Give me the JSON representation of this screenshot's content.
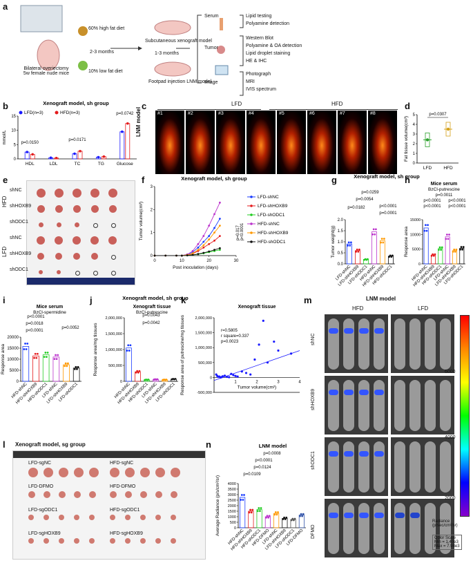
{
  "figure_panels": {
    "a": {
      "label": "a",
      "mice": "Bilateral overiectomy\n5w female nude mice",
      "diet_high": "60% high fat diet",
      "diet_low": "10% low fat diet",
      "time1": "2-3 months",
      "time2": "1-3 months",
      "subq": "Subcutaneous xenograft model",
      "footpad": "Footpad injection LNM model",
      "cat_serum": "Serum",
      "cat_tumor": "Tumor",
      "cat_image": "Image",
      "serum_items": [
        "Lipid testing",
        "Polyamine detection"
      ],
      "tumor_items": [
        "Western Blot",
        "Polyamine & OA detection",
        "Lipid droplet staining",
        "HE & IHC"
      ],
      "image_items": [
        "Photograph",
        "MRI",
        "IVIS spectrum"
      ]
    },
    "b": {
      "label": "b"
    },
    "c": {
      "label": "c",
      "lfd": "LFD",
      "hfd": "HFD",
      "ylabel": "LNM model",
      "mice": [
        "#1",
        "#2",
        "#3",
        "#4",
        "#5",
        "#6",
        "#7",
        "#8"
      ]
    },
    "d": {
      "label": "d"
    },
    "e": {
      "label": "e",
      "groups": [
        "HFD",
        "LFD"
      ],
      "rows": [
        "shNC",
        "shHOXB9",
        "shODC1",
        "shNC",
        "shHOXB9",
        "shODC1"
      ]
    },
    "f": {
      "label": "f"
    },
    "g": {
      "label": "g"
    },
    "h": {
      "label": "h"
    },
    "i": {
      "label": "i"
    },
    "j": {
      "label": "j"
    },
    "k": {
      "label": "k"
    },
    "l": {
      "label": "l",
      "title": "Xenograft model, sg group",
      "labels": [
        "LFD-sgNC",
        "HFD-sgNC",
        "LFD-DFMO",
        "HFD-DFMO",
        "LFD-sgODC1",
        "HFD-sgODC1",
        "LFD-sgHOXB9",
        "HFD-sgHOXB9"
      ]
    },
    "m": {
      "label": "m",
      "title": "LNM model",
      "hfd": "HFD",
      "lfd": "LFD",
      "rows": [
        "shNC",
        "shHOXB9",
        "shODC1",
        "DFMO"
      ],
      "cbar_ticks": [
        "6000",
        "4000",
        "2000"
      ],
      "cbar_label": "Radiance\n(p/sec/cm²/sr)",
      "color_scale": "Color Scale\nMin = 1.40e3\nMax = 7.98e3"
    },
    "n": {
      "label": "n"
    }
  },
  "colors": {
    "lfd": "#1a1aff",
    "hfd": "#e41a1c",
    "lfd_shnc": "#1a3cff",
    "lfd_shhoxb9": "#e41a1c",
    "lfd_shodc1": "#22cc22",
    "hfd_shnc": "#bb33cc",
    "hfd_shhoxb9": "#ff9900",
    "hfd_shodc1": "#111111",
    "d_lfd": "#2ca02c",
    "d_hfd": "#d4a017"
  },
  "chart_data": [
    {
      "panel": "b",
      "type": "bar",
      "title": "Xenograft model, sh group",
      "ylabel": "mmol/L",
      "ylim": [
        0,
        15
      ],
      "yticks": [
        "0",
        "5",
        "10",
        "15"
      ],
      "categories": [
        "HDL",
        "LDL",
        "TC",
        "TG",
        "Glucose"
      ],
      "series": [
        {
          "name": "LFD(n=3)",
          "values": [
            2.4,
            0.4,
            1.8,
            0.6,
            9.5
          ]
        },
        {
          "name": "HFD(n=3)",
          "values": [
            1.6,
            0.3,
            2.7,
            0.8,
            12.4
          ]
        }
      ],
      "annotations": [
        "p=0.0150",
        "p=0.0171",
        "p=0.0742"
      ]
    },
    {
      "panel": "d",
      "type": "bar",
      "ylabel": "Fat tissue volume(cm³)",
      "ylim": [
        0,
        5
      ],
      "yticks": [
        "0",
        "1",
        "2",
        "3",
        "4",
        "5"
      ],
      "categories": [
        "LFD",
        "HFD"
      ],
      "values": [
        2.4,
        3.5
      ],
      "annotations": [
        "p=0.0307"
      ]
    },
    {
      "panel": "f",
      "type": "line",
      "title": "Xenograft model, sh group",
      "xlabel": "Post inoculation (days)",
      "ylabel": "Tumor volume(cm³)",
      "xlim": [
        0,
        30
      ],
      "ylim": [
        0,
        3
      ],
      "xticks": [
        "0",
        "10",
        "20",
        "30"
      ],
      "yticks": [
        "0",
        "1",
        "2",
        "3"
      ],
      "x": [
        0,
        4,
        8,
        10,
        12,
        14,
        16,
        18,
        20,
        22,
        24
      ],
      "series": [
        {
          "name": "LFD-shNC",
          "values": [
            0,
            0,
            0,
            0,
            0.05,
            0.15,
            0.35,
            0.6,
            0.85,
            1.2,
            1.6
          ]
        },
        {
          "name": "LFD-shHOXB9",
          "values": [
            0,
            0,
            0,
            0,
            0.02,
            0.08,
            0.2,
            0.35,
            0.5,
            0.65,
            0.85
          ]
        },
        {
          "name": "LFD-shODC1",
          "values": [
            0,
            0,
            0,
            0,
            0.01,
            0.03,
            0.06,
            0.1,
            0.15,
            0.2,
            0.25
          ]
        },
        {
          "name": "HFD-shNC",
          "values": [
            0,
            0,
            0,
            0,
            0.05,
            0.2,
            0.5,
            0.85,
            1.3,
            1.8,
            2.3
          ]
        },
        {
          "name": "HFD-shHOXB9",
          "values": [
            0,
            0,
            0,
            0,
            0.03,
            0.1,
            0.25,
            0.45,
            0.7,
            1.0,
            1.3
          ]
        },
        {
          "name": "HFD-shODC1",
          "values": [
            0,
            0,
            0,
            0,
            0.01,
            0.03,
            0.07,
            0.12,
            0.18,
            0.25,
            0.32
          ]
        }
      ],
      "annotations": [
        "p=0.017",
        "p<0.0001"
      ]
    },
    {
      "panel": "g",
      "type": "bar",
      "ylabel": "Tumor weight(g)",
      "ylim": [
        0,
        2.0
      ],
      "yticks": [
        "0.0",
        "0.5",
        "1.0",
        "1.5",
        "2.0"
      ],
      "categories": [
        "LFD-shNC",
        "LFD-shHOXB9",
        "LFD-shODC1",
        "HFD-shNC",
        "HFD-shHOXB9",
        "HFD-shODC1"
      ],
      "values": [
        0.9,
        0.6,
        0.2,
        1.45,
        1.05,
        0.35
      ],
      "annotations": [
        "p=0.0259",
        "p=0.0054",
        "p<0.0001",
        "p=0.0182",
        "p=0.0001"
      ]
    },
    {
      "panel": "h",
      "type": "bar",
      "title": "Mice serum",
      "subtitle": "BzCl-putrescine",
      "ylabel": "Response area",
      "ylim": [
        0,
        15000
      ],
      "yticks": [
        "0",
        "5000",
        "10000",
        "15000"
      ],
      "categories": [
        "HFD-shNC",
        "HFD-shHOXB9",
        "HFD-shODC1",
        "LFD-shNC",
        "LFD-shHOXB9",
        "LFD-shODC1"
      ],
      "values": [
        12200,
        3000,
        5200,
        9200,
        4500,
        5300
      ],
      "annotations": [
        "p=0.0011",
        "p<0.0001",
        "p<0.0001",
        "p<0.0001",
        "p<0.0001"
      ]
    },
    {
      "panel": "i",
      "type": "bar",
      "title": "Mice serum",
      "subtitle": "BzCl-spermidine",
      "ylabel": "Response area",
      "ylim": [
        0,
        20000
      ],
      "yticks": [
        "0",
        "5000",
        "10000",
        "15000",
        "20000"
      ],
      "categories": [
        "HFD-shNC",
        "HFD-shHOXB9",
        "HFD-shODC1",
        "LFD-shNC",
        "LFD-shHOXB9",
        "LFD-shODC1"
      ],
      "values": [
        15800,
        11500,
        12000,
        11000,
        7500,
        6000
      ],
      "annotations": [
        "p<0.0001",
        "p=0.0018",
        "p<0.0001",
        "p=0.0052"
      ]
    },
    {
      "panel": "j",
      "type": "bar",
      "title": "Xenograft tissue",
      "subtitle": "BzCl-putrescine",
      "ylabel": "Response area/mg tissues",
      "ylim": [
        0,
        2000000
      ],
      "yticks": [
        "0",
        "500,000",
        "1,000,000",
        "1,500,000",
        "2,000,000"
      ],
      "categories": [
        "HFD-shNC",
        "HFD-shHOXB9",
        "HFD-shODC1",
        "LFD-shNC",
        "LFD-shHOXB9",
        "LFD-shODC1"
      ],
      "values": [
        1050000,
        300000,
        50000,
        60000,
        50000,
        70000
      ],
      "annotations": [
        "p=0.0043",
        "p=0.0042"
      ]
    },
    {
      "panel": "k",
      "type": "scatter",
      "title": "Xenograft tissue",
      "xlabel": "Tumor volume(cm²)",
      "ylabel": "Response area of putrescine/mg tissues",
      "xlim": [
        0,
        4
      ],
      "ylim": [
        -500000,
        2000000
      ],
      "xticks": [
        "1",
        "2",
        "3",
        "4"
      ],
      "yticks": [
        "-500,000",
        "0",
        "500,000",
        "1,000,000",
        "1,500,000",
        "2,000,000"
      ],
      "x": [
        0.1,
        0.15,
        0.2,
        0.25,
        0.3,
        0.35,
        0.4,
        0.5,
        0.6,
        0.7,
        0.8,
        0.9,
        1.0,
        1.1,
        1.3,
        1.5,
        1.7,
        1.9,
        2.1,
        2.3,
        2.5,
        2.8,
        3.0,
        3.6
      ],
      "y": [
        100000,
        50000,
        20000,
        30000,
        0,
        10000,
        40000,
        60000,
        20000,
        10000,
        120000,
        80000,
        50000,
        30000,
        200000,
        150000,
        100000,
        600000,
        1100000,
        1900000,
        500000,
        1200000,
        900000,
        800000
      ],
      "annotations": [
        "r=0.5805",
        "r square=0.337",
        "p=0.0023"
      ]
    },
    {
      "panel": "n",
      "type": "bar",
      "title": "LNM model",
      "ylabel": "Average Radiance (p/s/cm²/sr)",
      "ylim": [
        0,
        4000
      ],
      "yticks": [
        "0",
        "500",
        "1000",
        "1500",
        "2000",
        "2500",
        "3000",
        "3500",
        "4000"
      ],
      "categories": [
        "HFD-shNC",
        "HFD-shHOXB9",
        "HFD-shODC1",
        "HFD-DFMO",
        "LFD-shNC",
        "LFD-shHOXB9",
        "LFD-shODC1",
        "LFD-DFMO"
      ],
      "values": [
        2750,
        1500,
        1650,
        1000,
        1300,
        850,
        750,
        1150
      ],
      "annotations": [
        "p=0.0008",
        "p<0.0001",
        "p=0.0124",
        "p=0.0109"
      ]
    }
  ]
}
